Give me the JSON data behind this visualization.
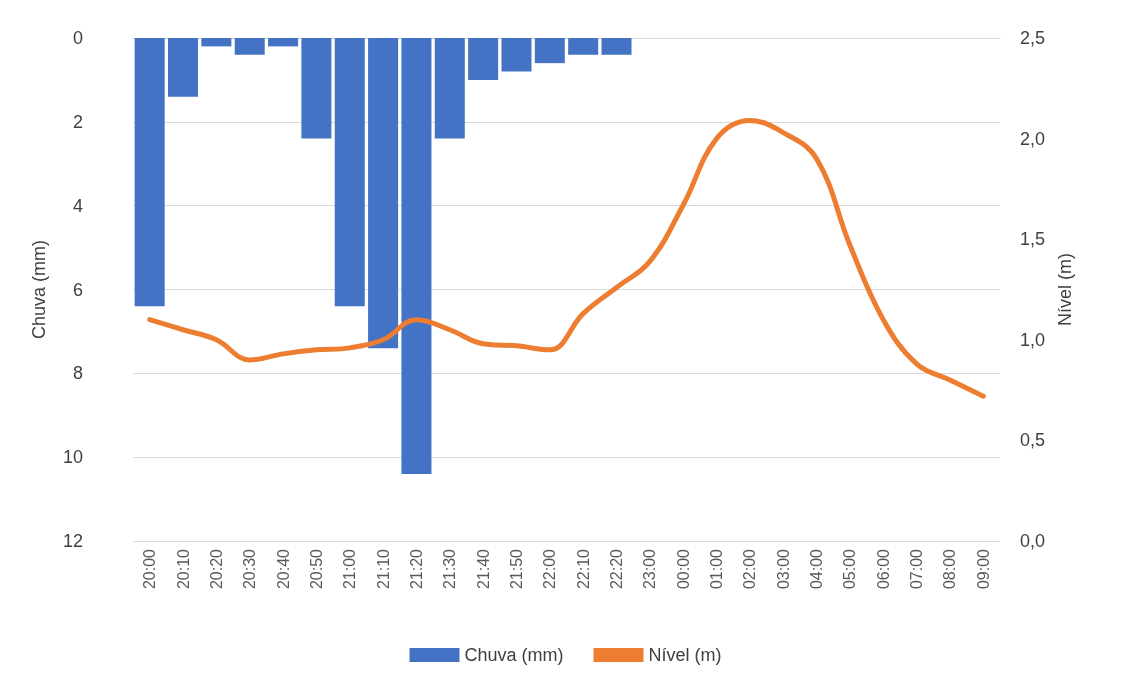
{
  "chart_data": {
    "type": "bar",
    "xlabel": null,
    "ylabel": "Chuva (mm)",
    "y2label": "Nível (m)",
    "categories": [
      "20:00",
      "20:10",
      "20:20",
      "20:30",
      "20:40",
      "20:50",
      "21:00",
      "21:10",
      "21:20",
      "21:30",
      "21:40",
      "21:50",
      "22:00",
      "22:10",
      "22:20",
      "23:00",
      "00:00",
      "01:00",
      "02:00",
      "03:00",
      "04:00",
      "05:00",
      "06:00",
      "07:00",
      "08:00",
      "09:00"
    ],
    "series": [
      {
        "name": "Chuva (mm)",
        "color": "#4472c4",
        "values": [
          6.4,
          1.4,
          0.2,
          0.4,
          0.2,
          2.4,
          6.4,
          7.4,
          10.4,
          2.4,
          1.0,
          0.8,
          0.6,
          0.4,
          0.4,
          null,
          null,
          null,
          null,
          null,
          null,
          null,
          null,
          null,
          null,
          null
        ]
      },
      {
        "name": "Nível (m)",
        "type": "line",
        "axis": "y2",
        "color": "#ed7d31",
        "values": [
          1.1,
          1.05,
          1.0,
          0.9,
          0.93,
          0.95,
          0.96,
          1.0,
          1.1,
          1.05,
          0.98,
          0.97,
          0.95,
          1.13,
          1.26,
          1.39,
          1.67,
          2.0,
          2.09,
          2.03,
          1.9,
          1.47,
          1.1,
          0.88,
          0.8,
          0.72
        ]
      }
    ],
    "ylim": [
      12,
      0
    ],
    "yticks": [
      0,
      2,
      4,
      6,
      8,
      10,
      12
    ],
    "y2lim": [
      0,
      2.5
    ],
    "y2ticks": [
      {
        "value": 0,
        "label": "0,0"
      },
      {
        "value": 0.5,
        "label": "0,5"
      },
      {
        "value": 1,
        "label": "1,0"
      },
      {
        "value": 1.5,
        "label": "1,5"
      },
      {
        "value": 2,
        "label": "2,0"
      },
      {
        "value": 2.5,
        "label": "2,5"
      }
    ],
    "grid": "y",
    "legend": "bottom",
    "marker": "none",
    "line_style": "solid"
  }
}
